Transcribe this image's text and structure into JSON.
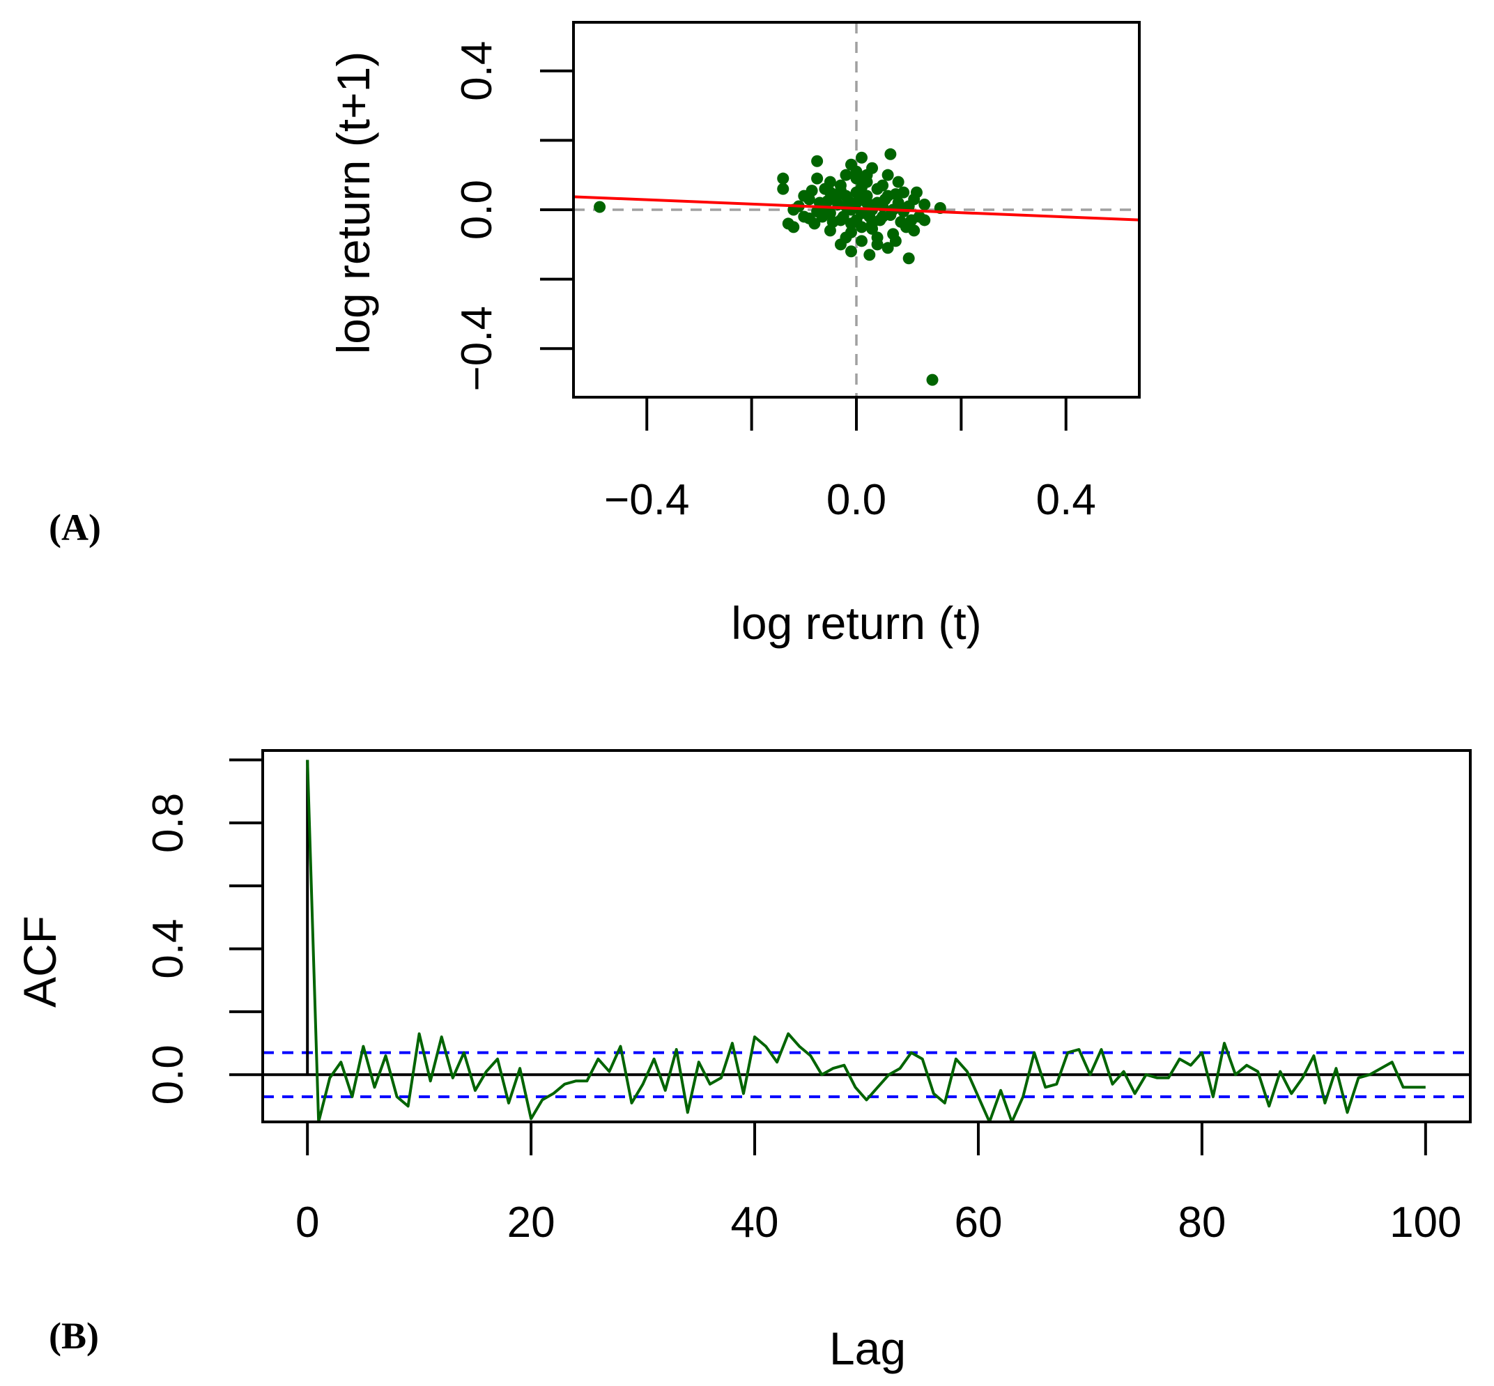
{
  "panel_labels": {
    "a": "(A)",
    "b": "(B)"
  },
  "colors": {
    "points": "#006400",
    "fit_line": "#ff0000",
    "reference": "#a0a0a0",
    "acf_line": "#006400",
    "confidence": "#0000ff",
    "axis": "#000000"
  },
  "chart_data": [
    {
      "type": "scatter",
      "panel": "A",
      "xlabel": "log return (t)",
      "ylabel": "log return (t+1)",
      "xlim": [
        -0.54,
        0.54
      ],
      "ylim": [
        -0.54,
        0.54
      ],
      "x_ticks": [
        -0.4,
        -0.2,
        0.0,
        0.2,
        0.4
      ],
      "x_tick_labels": [
        "−0.4",
        "0.0",
        "0.4"
      ],
      "x_tick_label_values": [
        -0.4,
        0.0,
        0.4
      ],
      "y_ticks": [
        -0.4,
        -0.2,
        0.0,
        0.2,
        0.4
      ],
      "y_tick_labels": [
        "−0.4",
        "0.0",
        "0.4"
      ],
      "y_tick_label_values": [
        -0.4,
        0.0,
        0.4
      ],
      "reference_lines": {
        "x": 0.0,
        "y": 0.0
      },
      "fit_line": {
        "intercept": 0.004,
        "slope": -0.062
      },
      "points": [
        [
          -0.49,
          0.008
        ],
        [
          0.145,
          -0.49
        ],
        [
          -0.075,
          0.14
        ],
        [
          0.065,
          0.16
        ],
        [
          0.01,
          0.15
        ],
        [
          -0.14,
          0.09
        ],
        [
          -0.14,
          0.06
        ],
        [
          -0.13,
          -0.04
        ],
        [
          -0.12,
          -0.05
        ],
        [
          -0.075,
          0.09
        ],
        [
          0.1,
          -0.14
        ],
        [
          0.16,
          0.005
        ],
        [
          0.13,
          0.015
        ],
        [
          0.025,
          -0.13
        ],
        [
          -0.01,
          -0.12
        ],
        [
          0.06,
          -0.11
        ],
        [
          0.11,
          -0.06
        ],
        [
          -0.1,
          0.04
        ],
        [
          -0.06,
          0.06
        ],
        [
          -0.02,
          0.1
        ],
        [
          0.03,
          0.12
        ],
        [
          0.06,
          0.1
        ],
        [
          0.08,
          0.08
        ],
        [
          0.09,
          0.05
        ],
        [
          0.11,
          0.03
        ],
        [
          0.12,
          -0.02
        ],
        [
          0.13,
          -0.03
        ],
        [
          0.095,
          -0.05
        ],
        [
          0.07,
          -0.07
        ],
        [
          0.04,
          -0.08
        ],
        [
          0.01,
          -0.09
        ],
        [
          -0.02,
          -0.08
        ],
        [
          -0.05,
          -0.06
        ],
        [
          -0.08,
          -0.04
        ],
        [
          -0.1,
          -0.02
        ],
        [
          -0.11,
          0.01
        ],
        [
          -0.09,
          0.03
        ],
        [
          -0.07,
          0.02
        ],
        [
          -0.05,
          0.05
        ],
        [
          -0.03,
          0.07
        ],
        [
          0.0,
          0.09
        ],
        [
          0.02,
          0.08
        ],
        [
          0.04,
          0.06
        ],
        [
          0.06,
          0.04
        ],
        [
          0.08,
          0.02
        ],
        [
          0.07,
          0.0
        ],
        [
          0.05,
          -0.02
        ],
        [
          0.03,
          -0.04
        ],
        [
          0.01,
          -0.05
        ],
        [
          -0.01,
          -0.04
        ],
        [
          -0.03,
          -0.03
        ],
        [
          -0.05,
          -0.01
        ],
        [
          -0.06,
          0.01
        ],
        [
          -0.04,
          0.03
        ],
        [
          -0.02,
          0.04
        ],
        [
          0.0,
          0.05
        ],
        [
          0.02,
          0.04
        ],
        [
          0.04,
          0.02
        ],
        [
          0.05,
          0.01
        ],
        [
          0.03,
          0.0
        ],
        [
          0.01,
          -0.01
        ],
        [
          -0.01,
          0.0
        ],
        [
          -0.02,
          0.01
        ],
        [
          0.0,
          0.02
        ],
        [
          0.02,
          0.02
        ],
        [
          0.015,
          0.03
        ],
        [
          -0.015,
          0.025
        ],
        [
          0.035,
          0.015
        ],
        [
          -0.035,
          0.015
        ],
        [
          0.025,
          -0.02
        ],
        [
          -0.025,
          -0.02
        ],
        [
          0.045,
          -0.03
        ],
        [
          -0.045,
          -0.035
        ],
        [
          0.055,
          0.03
        ],
        [
          -0.055,
          0.025
        ],
        [
          0.065,
          -0.015
        ],
        [
          -0.065,
          -0.02
        ],
        [
          0.075,
          0.045
        ],
        [
          -0.075,
          -0.005
        ],
        [
          0.085,
          -0.035
        ],
        [
          0.0,
          -0.03
        ],
        [
          0.01,
          0.065
        ],
        [
          -0.01,
          -0.065
        ],
        [
          0.03,
          -0.055
        ],
        [
          -0.03,
          0.055
        ],
        [
          0.05,
          0.07
        ],
        [
          -0.05,
          0.08
        ],
        [
          0.09,
          -0.005
        ],
        [
          0.1,
          0.01
        ],
        [
          0.105,
          -0.03
        ],
        [
          -0.085,
          0.055
        ],
        [
          -0.09,
          -0.025
        ],
        [
          0.0,
          0.11
        ],
        [
          -0.01,
          0.13
        ],
        [
          0.02,
          0.1
        ],
        [
          0.04,
          -0.1
        ],
        [
          -0.03,
          -0.1
        ],
        [
          0.075,
          -0.09
        ],
        [
          0.115,
          0.05
        ],
        [
          -0.12,
          0.0
        ]
      ]
    },
    {
      "type": "line",
      "panel": "B",
      "xlabel": "Lag",
      "ylabel": "ACF",
      "xlim": [
        -4,
        104
      ],
      "ylim": [
        -0.15,
        1.03
      ],
      "x_ticks": [
        0,
        20,
        40,
        60,
        80,
        100
      ],
      "x_tick_labels": [
        "0",
        "20",
        "40",
        "60",
        "80",
        "100"
      ],
      "y_ticks": [
        0.0,
        0.2,
        0.4,
        0.6,
        0.8,
        1.0
      ],
      "y_tick_labels": [
        "0.0",
        "0.4",
        "0.8"
      ],
      "y_tick_label_values": [
        0.0,
        0.4,
        0.8
      ],
      "zero_line": 0.0,
      "confidence_bounds": [
        0.07,
        -0.07
      ],
      "lag0_spike": 1.0,
      "lags": [
        0,
        1,
        2,
        3,
        4,
        5,
        6,
        7,
        8,
        9,
        10,
        11,
        12,
        13,
        14,
        15,
        16,
        17,
        18,
        19,
        20,
        21,
        22,
        23,
        24,
        25,
        26,
        27,
        28,
        29,
        30,
        31,
        32,
        33,
        34,
        35,
        36,
        37,
        38,
        39,
        40,
        41,
        42,
        43,
        44,
        45,
        46,
        47,
        48,
        49,
        50,
        51,
        52,
        53,
        54,
        55,
        56,
        57,
        58,
        59,
        60,
        61,
        62,
        63,
        64,
        65,
        66,
        67,
        68,
        69,
        70,
        71,
        72,
        73,
        74,
        75,
        76,
        77,
        78,
        79,
        80,
        81,
        82,
        83,
        84,
        85,
        86,
        87,
        88,
        89,
        90,
        91,
        92,
        93,
        94,
        95,
        96,
        97,
        98,
        99,
        100
      ],
      "values": [
        1.0,
        -0.15,
        -0.01,
        0.04,
        -0.07,
        0.09,
        -0.04,
        0.06,
        -0.07,
        -0.1,
        0.13,
        -0.02,
        0.12,
        -0.01,
        0.07,
        -0.05,
        0.01,
        0.05,
        -0.09,
        0.02,
        -0.14,
        -0.08,
        -0.06,
        -0.03,
        -0.02,
        -0.02,
        0.05,
        0.01,
        0.09,
        -0.09,
        -0.03,
        0.05,
        -0.05,
        0.08,
        -0.12,
        0.04,
        -0.03,
        -0.01,
        0.1,
        -0.06,
        0.12,
        0.09,
        0.04,
        0.13,
        0.09,
        0.06,
        0.0,
        0.02,
        0.03,
        -0.04,
        -0.08,
        -0.04,
        0.0,
        0.02,
        0.07,
        0.05,
        -0.06,
        -0.09,
        0.05,
        0.01,
        -0.07,
        -0.15,
        -0.05,
        -0.15,
        -0.07,
        0.07,
        -0.04,
        -0.03,
        0.07,
        0.08,
        0.0,
        0.08,
        -0.03,
        0.01,
        -0.06,
        0.0,
        -0.01,
        -0.01,
        0.05,
        0.03,
        0.07,
        -0.07,
        0.1,
        0.0,
        0.03,
        0.01,
        -0.1,
        0.01,
        -0.06,
        -0.01,
        0.06,
        -0.09,
        0.02,
        -0.12,
        -0.01,
        0.0,
        0.02,
        0.04,
        -0.04,
        -0.04,
        -0.04
      ]
    }
  ]
}
